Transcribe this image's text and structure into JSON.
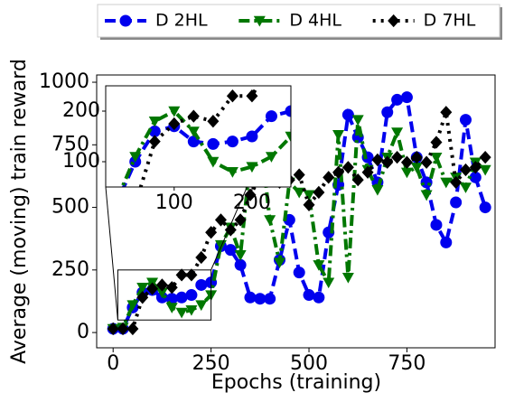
{
  "chart_data": {
    "type": "line",
    "xlabel": "Epochs (training)",
    "ylabel": "Average (moving) train reward",
    "x": [
      0,
      25,
      50,
      75,
      100,
      125,
      150,
      175,
      200,
      225,
      250,
      275,
      300,
      325,
      350,
      375,
      400,
      425,
      450,
      475,
      500,
      525,
      550,
      575,
      600,
      625,
      650,
      675,
      700,
      725,
      750,
      775,
      800,
      825,
      850,
      875,
      900,
      925,
      950
    ],
    "series": [
      {
        "name": "D 2HL",
        "color": "#0000ee",
        "marker": "circle",
        "dash": "dashed",
        "values": [
          15,
          15,
          100,
          160,
          170,
          140,
          135,
          140,
          150,
          190,
          200,
          345,
          330,
          270,
          140,
          135,
          135,
          290,
          450,
          240,
          150,
          140,
          400,
          590,
          870,
          780,
          700,
          600,
          880,
          930,
          940,
          700,
          600,
          430,
          360,
          520,
          850,
          620,
          500
        ]
      },
      {
        "name": "D 4HL",
        "color": "#007700",
        "marker": "triangle-down",
        "dash": "dashdot",
        "values": [
          15,
          20,
          110,
          180,
          200,
          160,
          100,
          80,
          90,
          110,
          150,
          350,
          420,
          310,
          690,
          800,
          450,
          280,
          600,
          560,
          550,
          270,
          200,
          790,
          220,
          850,
          650,
          570,
          700,
          800,
          640,
          660,
          550,
          700,
          600,
          620,
          580,
          680,
          650
        ]
      },
      {
        "name": "D 7HL",
        "color": "#000000",
        "marker": "diamond",
        "dash": "dotted",
        "values": [
          15,
          15,
          15,
          140,
          175,
          190,
          180,
          230,
          230,
          300,
          400,
          450,
          410,
          450,
          550,
          620,
          660,
          600,
          610,
          630,
          510,
          560,
          620,
          640,
          660,
          610,
          640,
          690,
          680,
          700,
          680,
          700,
          680,
          760,
          880,
          600,
          650,
          660,
          700
        ]
      }
    ],
    "xlim": [
      -42,
      975
    ],
    "ylim": [
      -61,
      1029
    ],
    "xticks": [
      0,
      250,
      500,
      750
    ],
    "yticks": [
      0,
      250,
      500,
      750,
      1000
    ],
    "inset": {
      "xlim": [
        12,
        250
      ],
      "ylim": [
        50,
        250
      ],
      "xticks": [
        100,
        200
      ],
      "yticks": [
        100,
        200
      ]
    },
    "legend": "top"
  }
}
